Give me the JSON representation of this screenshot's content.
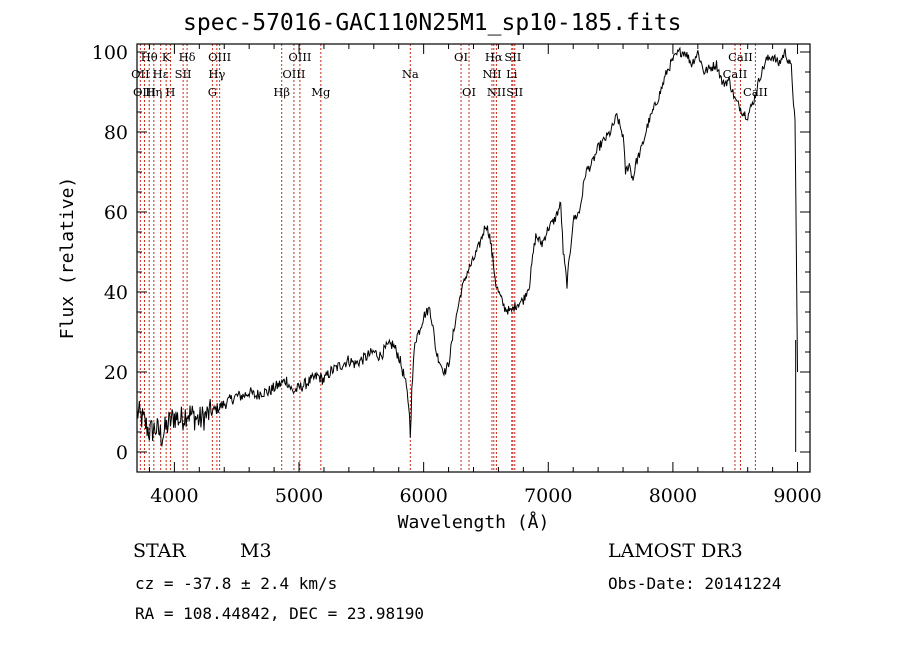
{
  "chart_data": {
    "type": "line",
    "title": "spec-57016-GAC110N25M1_sp10-185.fits",
    "xlabel": "Wavelength (Å)",
    "ylabel": "Flux (relative)",
    "xlim": [
      3700,
      9100
    ],
    "ylim": [
      -5,
      102
    ],
    "xticks": [
      4000,
      5000,
      6000,
      7000,
      8000,
      9000
    ],
    "yticks": [
      0,
      20,
      40,
      60,
      80,
      100
    ],
    "grid": false,
    "series": [
      {
        "name": "spectrum",
        "x": [
          3700,
          3750,
          3800,
          3850,
          3900,
          3950,
          4000,
          4050,
          4100,
          4150,
          4200,
          4250,
          4300,
          4350,
          4400,
          4450,
          4500,
          4550,
          4600,
          4650,
          4700,
          4750,
          4800,
          4850,
          4900,
          4950,
          5000,
          5050,
          5100,
          5150,
          5200,
          5250,
          5300,
          5350,
          5400,
          5450,
          5500,
          5550,
          5600,
          5650,
          5700,
          5750,
          5800,
          5850,
          5880,
          5893,
          5905,
          5930,
          5960,
          6000,
          6050,
          6080,
          6100,
          6150,
          6170,
          6200,
          6250,
          6300,
          6350,
          6400,
          6450,
          6500,
          6530,
          6560,
          6580,
          6600,
          6650,
          6700,
          6720,
          6750,
          6800,
          6850,
          6880,
          6900,
          6950,
          7000,
          7050,
          7100,
          7120,
          7150,
          7200,
          7250,
          7300,
          7350,
          7400,
          7450,
          7500,
          7550,
          7600,
          7620,
          7650,
          7680,
          7700,
          7750,
          7800,
          7850,
          7900,
          7950,
          8000,
          8050,
          8100,
          8150,
          8200,
          8250,
          8300,
          8350,
          8400,
          8450,
          8500,
          8542,
          8560,
          8600,
          8650,
          8700,
          8750,
          8800,
          8850,
          8900,
          8950,
          8980,
          9000
        ],
        "y": [
          10,
          8,
          5,
          6,
          4,
          7,
          9,
          8,
          10,
          9,
          8,
          9,
          10,
          11,
          12,
          13,
          14,
          14,
          15,
          14,
          15,
          15,
          16,
          17,
          18,
          15,
          16,
          17,
          18,
          19,
          18,
          20,
          21,
          22,
          23,
          22,
          23,
          24,
          25,
          24,
          26,
          27,
          24,
          18,
          12,
          5,
          15,
          28,
          30,
          34,
          36,
          30,
          25,
          21,
          20,
          22,
          32,
          40,
          45,
          48,
          52,
          57,
          54,
          47,
          42,
          40,
          36,
          35,
          36,
          37,
          38,
          42,
          50,
          54,
          52,
          56,
          58,
          62,
          50,
          42,
          58,
          60,
          70,
          72,
          76,
          78,
          80,
          84,
          79,
          70,
          72,
          68,
          72,
          76,
          82,
          86,
          90,
          95,
          98,
          100,
          100,
          97,
          100,
          95,
          96,
          97,
          92,
          93,
          88,
          86,
          85,
          84,
          88,
          94,
          98,
          99,
          97,
          100,
          96,
          82,
          20
        ]
      }
    ],
    "line_labels": [
      {
        "name": "Hθ",
        "wavelength": 3798,
        "row": 1
      },
      {
        "name": "OII",
        "wavelength": 3727,
        "row": 2
      },
      {
        "name": "OIII",
        "wavelength": 3760,
        "row": 3
      },
      {
        "name": "Hη",
        "wavelength": 3835,
        "row": 3
      },
      {
        "name": "K",
        "wavelength": 3934,
        "row": 1
      },
      {
        "name": "Hε",
        "wavelength": 3890,
        "row": 2
      },
      {
        "name": "H",
        "wavelength": 3968,
        "row": 3
      },
      {
        "name": "SII",
        "wavelength": 4070,
        "row": 2
      },
      {
        "name": "Hδ",
        "wavelength": 4102,
        "row": 1
      },
      {
        "name": "OIII",
        "wavelength": 4363,
        "row": 1
      },
      {
        "name": "Hγ",
        "wavelength": 4341,
        "row": 2
      },
      {
        "name": "G",
        "wavelength": 4305,
        "row": 3
      },
      {
        "name": "Hβ",
        "wavelength": 4861,
        "row": 3
      },
      {
        "name": "OIII",
        "wavelength": 5007,
        "row": 1
      },
      {
        "name": "OIII",
        "wavelength": 4959,
        "row": 2
      },
      {
        "name": "Mg",
        "wavelength": 5175,
        "row": 3
      },
      {
        "name": "Na",
        "wavelength": 5893,
        "row": 2
      },
      {
        "name": "OI",
        "wavelength": 6300,
        "row": 1
      },
      {
        "name": "OI",
        "wavelength": 6364,
        "row": 3
      },
      {
        "name": "Hα",
        "wavelength": 6563,
        "row": 1
      },
      {
        "name": "SII",
        "wavelength": 6716,
        "row": 1
      },
      {
        "name": "NII",
        "wavelength": 6548,
        "row": 2
      },
      {
        "name": "Li",
        "wavelength": 6707,
        "row": 2
      },
      {
        "name": "NII",
        "wavelength": 6584,
        "row": 3
      },
      {
        "name": "SII",
        "wavelength": 6731,
        "row": 3
      },
      {
        "name": "CaII",
        "wavelength": 8542,
        "row": 1
      },
      {
        "name": "CaII",
        "wavelength": 8498,
        "row": 2
      },
      {
        "name": "CaII",
        "wavelength": 8662,
        "row": 3
      }
    ]
  },
  "info": {
    "class_label": "STAR",
    "subclass": "M3",
    "redshift": "cz = -37.8 ± 2.4 km/s",
    "coords": "RA = 108.44842, DEC =  23.98190",
    "survey": "LAMOST DR3",
    "obs_date": "Obs-Date: 20141224"
  },
  "colors": {
    "spectrum": "#000000",
    "line_markers": "#cc2a1a",
    "axes": "#000000"
  }
}
